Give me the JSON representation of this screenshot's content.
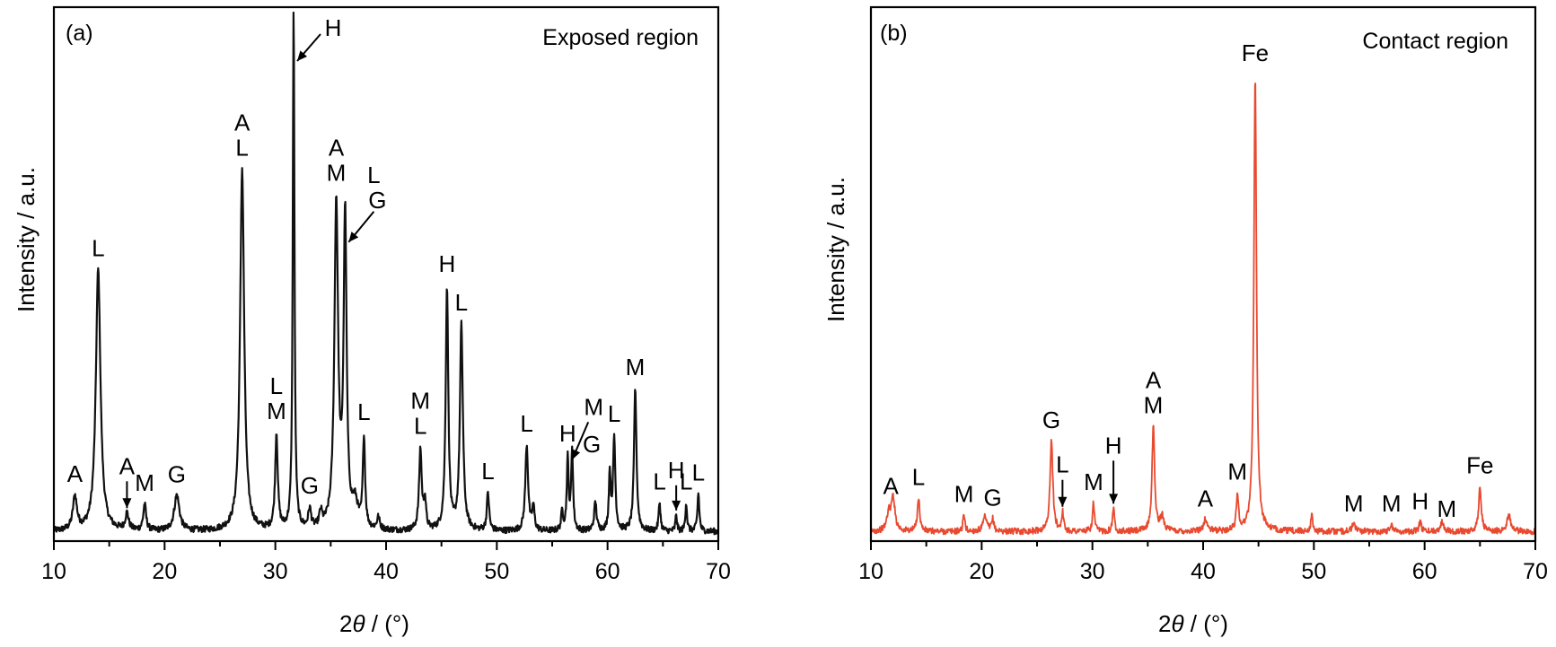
{
  "chart_data": [
    {
      "type": "line",
      "panel_tag": "(a)",
      "title": "Exposed region",
      "xlabel_main": "2",
      "xlabel_theta": "θ",
      "xlabel_unit": " / (°)",
      "ylabel": "Intensity / a.u.",
      "xlim": [
        10,
        70
      ],
      "xticks": [
        "10",
        "20",
        "30",
        "40",
        "50",
        "60",
        "70"
      ],
      "color": "#111111",
      "baseline": 2.0,
      "series": [
        {
          "peaks": [
            {
              "x": 11.9,
              "h": 7.0,
              "w": 0.22
            },
            {
              "x": 14.0,
              "h": 55.0,
              "w": 0.25
            },
            {
              "x": 16.6,
              "h": 3.5,
              "w": 0.18
            },
            {
              "x": 18.2,
              "h": 5.5,
              "w": 0.15
            },
            {
              "x": 21.1,
              "h": 7.5,
              "w": 0.28
            },
            {
              "x": 27.0,
              "h": 76.0,
              "w": 0.22
            },
            {
              "x": 30.1,
              "h": 20.0,
              "w": 0.14
            },
            {
              "x": 31.65,
              "h": 110.0,
              "w": 0.09
            },
            {
              "x": 33.1,
              "h": 4.0,
              "w": 0.15
            },
            {
              "x": 34.1,
              "h": 3.0,
              "w": 0.15
            },
            {
              "x": 35.5,
              "h": 68.0,
              "w": 0.2
            },
            {
              "x": 36.3,
              "h": 65.0,
              "w": 0.16
            },
            {
              "x": 37.2,
              "h": 5.0,
              "w": 0.3
            },
            {
              "x": 38.0,
              "h": 19.0,
              "w": 0.12
            },
            {
              "x": 39.3,
              "h": 2.5,
              "w": 0.15
            },
            {
              "x": 43.1,
              "h": 17.0,
              "w": 0.14
            },
            {
              "x": 43.5,
              "h": 6.0,
              "w": 0.12
            },
            {
              "x": 45.5,
              "h": 51.0,
              "w": 0.14
            },
            {
              "x": 46.8,
              "h": 43.0,
              "w": 0.16
            },
            {
              "x": 49.2,
              "h": 8.0,
              "w": 0.12
            },
            {
              "x": 52.7,
              "h": 18.0,
              "w": 0.15
            },
            {
              "x": 53.3,
              "h": 5.0,
              "w": 0.12
            },
            {
              "x": 55.9,
              "h": 4.0,
              "w": 0.1
            },
            {
              "x": 56.4,
              "h": 15.0,
              "w": 0.1
            },
            {
              "x": 56.8,
              "h": 17.0,
              "w": 0.1
            },
            {
              "x": 58.9,
              "h": 6.0,
              "w": 0.13
            },
            {
              "x": 60.2,
              "h": 12.0,
              "w": 0.1
            },
            {
              "x": 60.6,
              "h": 19.5,
              "w": 0.12
            },
            {
              "x": 62.5,
              "h": 30.0,
              "w": 0.13
            },
            {
              "x": 64.7,
              "h": 6.0,
              "w": 0.1
            },
            {
              "x": 66.2,
              "h": 3.5,
              "w": 0.08
            },
            {
              "x": 67.1,
              "h": 6.0,
              "w": 0.09
            },
            {
              "x": 68.2,
              "h": 8.0,
              "w": 0.1
            }
          ]
        }
      ],
      "annotations": [
        {
          "text": "A",
          "x": 11.9
        },
        {
          "text": "L",
          "x": 14.0
        },
        {
          "text": "A",
          "x": 16.6
        },
        {
          "text": "M",
          "x": 18.2
        },
        {
          "text": "G",
          "x": 21.1
        },
        {
          "text": "A",
          "x": 27.0
        },
        {
          "text": "L",
          "x": 27.0
        },
        {
          "text": "L",
          "x": 30.1
        },
        {
          "text": "M",
          "x": 30.1
        },
        {
          "text": "H",
          "x": 31.65
        },
        {
          "text": "G",
          "x": 33.1
        },
        {
          "text": "A",
          "x": 35.5
        },
        {
          "text": "M",
          "x": 35.5
        },
        {
          "text": "L",
          "x": 36.3
        },
        {
          "text": "G",
          "x": 36.3
        },
        {
          "text": "L",
          "x": 38.0
        },
        {
          "text": "M",
          "x": 43.1
        },
        {
          "text": "L",
          "x": 43.1
        },
        {
          "text": "H",
          "x": 45.5
        },
        {
          "text": "L",
          "x": 46.8
        },
        {
          "text": "L",
          "x": 49.2
        },
        {
          "text": "L",
          "x": 52.7
        },
        {
          "text": "H",
          "x": 56.4
        },
        {
          "text": "M",
          "x": 56.8
        },
        {
          "text": "G",
          "x": 58.9
        },
        {
          "text": "L",
          "x": 60.6
        },
        {
          "text": "M",
          "x": 62.5
        },
        {
          "text": "L",
          "x": 64.7
        },
        {
          "text": "H",
          "x": 66.2
        },
        {
          "text": "L",
          "x": 67.1
        },
        {
          "text": "L",
          "x": 68.2
        }
      ]
    },
    {
      "type": "line",
      "panel_tag": "(b)",
      "title": "Contact region",
      "xlabel_main": "2",
      "xlabel_theta": "θ",
      "xlabel_unit": " / (°)",
      "ylabel": "Intensity / a.u.",
      "xlim": [
        10,
        70
      ],
      "xticks": [
        "10",
        "20",
        "30",
        "40",
        "50",
        "60",
        "70"
      ],
      "color": "#e8492f",
      "baseline": 2.0,
      "series": [
        {
          "peaks": [
            {
              "x": 11.6,
              "h": 3.5,
              "w": 0.2
            },
            {
              "x": 12.0,
              "h": 7.0,
              "w": 0.2
            },
            {
              "x": 14.3,
              "h": 7.0,
              "w": 0.13
            },
            {
              "x": 18.4,
              "h": 3.5,
              "w": 0.1
            },
            {
              "x": 20.3,
              "h": 3.0,
              "w": 0.2
            },
            {
              "x": 21.0,
              "h": 2.5,
              "w": 0.12
            },
            {
              "x": 26.3,
              "h": 19.0,
              "w": 0.15
            },
            {
              "x": 27.3,
              "h": 4.0,
              "w": 0.1
            },
            {
              "x": 30.1,
              "h": 6.0,
              "w": 0.1
            },
            {
              "x": 31.9,
              "h": 5.0,
              "w": 0.1
            },
            {
              "x": 35.5,
              "h": 22.0,
              "w": 0.14
            },
            {
              "x": 36.3,
              "h": 3.0,
              "w": 0.2
            },
            {
              "x": 40.2,
              "h": 2.5,
              "w": 0.2
            },
            {
              "x": 43.1,
              "h": 7.5,
              "w": 0.12
            },
            {
              "x": 44.7,
              "h": 96.0,
              "w": 0.14
            },
            {
              "x": 49.8,
              "h": 3.5,
              "w": 0.1
            },
            {
              "x": 53.6,
              "h": 1.5,
              "w": 0.2
            },
            {
              "x": 57.0,
              "h": 1.5,
              "w": 0.15
            },
            {
              "x": 59.6,
              "h": 2.0,
              "w": 0.12
            },
            {
              "x": 61.6,
              "h": 2.0,
              "w": 0.2
            },
            {
              "x": 65.0,
              "h": 9.5,
              "w": 0.14
            },
            {
              "x": 67.6,
              "h": 3.5,
              "w": 0.2
            }
          ]
        }
      ],
      "annotations": [
        {
          "text": "A",
          "x": 11.8
        },
        {
          "text": "L",
          "x": 14.3
        },
        {
          "text": "M",
          "x": 18.4
        },
        {
          "text": "G",
          "x": 21.0
        },
        {
          "text": "G",
          "x": 26.3
        },
        {
          "text": "L",
          "x": 27.3
        },
        {
          "text": "M",
          "x": 30.1
        },
        {
          "text": "H",
          "x": 31.9
        },
        {
          "text": "A",
          "x": 35.5
        },
        {
          "text": "M",
          "x": 35.5
        },
        {
          "text": "A",
          "x": 40.2
        },
        {
          "text": "M",
          "x": 43.1
        },
        {
          "text": "Fe",
          "x": 44.7
        },
        {
          "text": "M",
          "x": 53.6
        },
        {
          "text": "M",
          "x": 57.0
        },
        {
          "text": "H",
          "x": 59.6
        },
        {
          "text": "M",
          "x": 62.0
        },
        {
          "text": "Fe",
          "x": 65.0
        }
      ]
    }
  ]
}
